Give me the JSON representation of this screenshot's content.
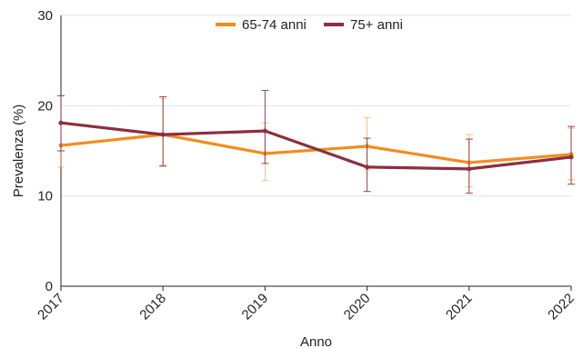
{
  "chart_data": {
    "type": "line",
    "xlabel": "Anno",
    "ylabel": "Prevalenza (%)",
    "ylim": [
      0,
      30
    ],
    "yticks": [
      0,
      10,
      20,
      30
    ],
    "categories": [
      "2017",
      "2018",
      "2019",
      "2020",
      "2021",
      "2022"
    ],
    "grid": "horizontal",
    "legend_position": "top-center",
    "series": [
      {
        "name": "65-74 anni",
        "color": "#f28c1e",
        "values": [
          15.6,
          16.8,
          14.7,
          15.5,
          13.7,
          14.6
        ],
        "error_low": [
          13.2,
          13.4,
          11.7,
          12.9,
          11.0,
          11.8
        ],
        "error_high": [
          18.0,
          20.8,
          18.1,
          18.7,
          16.8,
          17.5
        ]
      },
      {
        "name": "75+ anni",
        "color": "#8b2f3f",
        "values": [
          18.1,
          16.8,
          17.2,
          13.2,
          13.0,
          14.3
        ],
        "error_low": [
          15.0,
          13.3,
          13.6,
          10.5,
          10.3,
          11.3
        ],
        "error_high": [
          21.1,
          21.0,
          21.7,
          16.4,
          16.3,
          17.7
        ]
      }
    ]
  }
}
